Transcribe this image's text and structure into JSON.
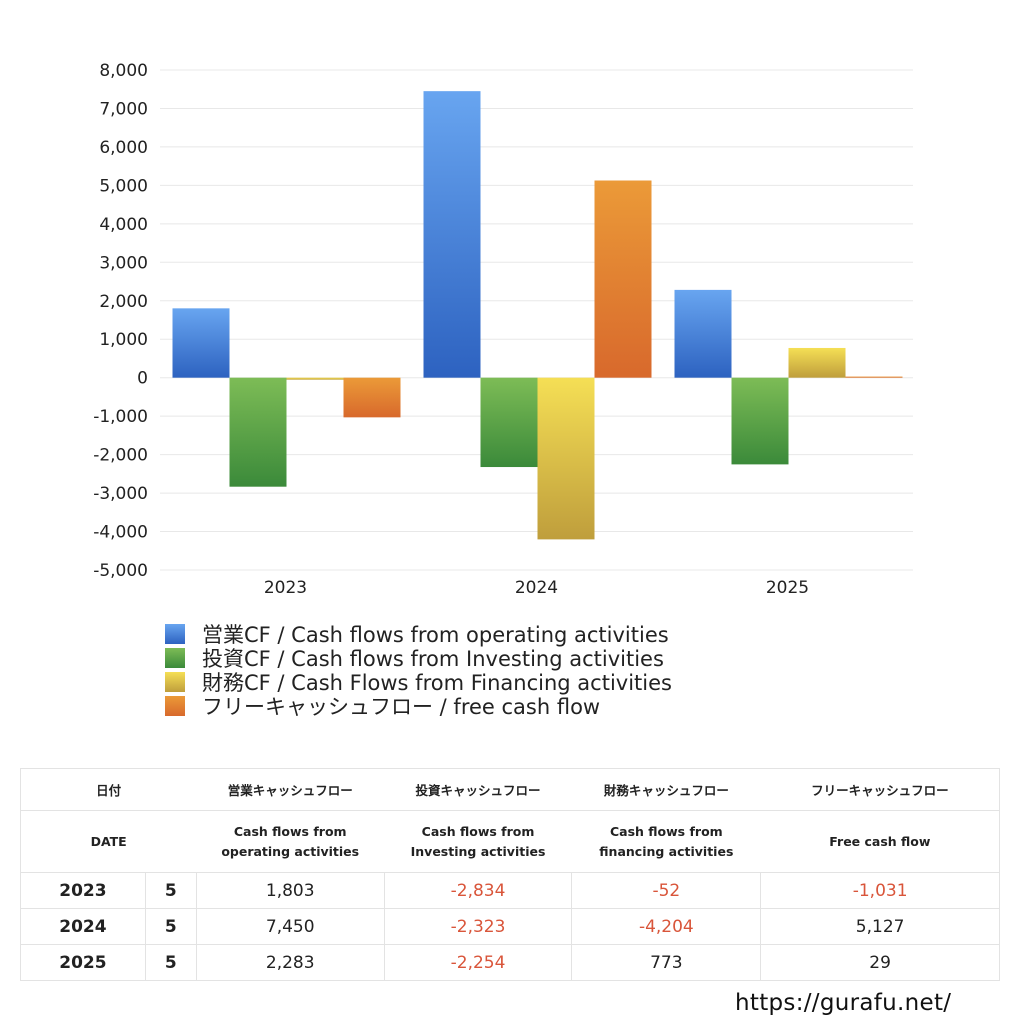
{
  "chart_data": {
    "type": "bar",
    "title": "",
    "xlabel": "",
    "ylabel": "",
    "ylim": [
      -5000,
      8000
    ],
    "yticks": [
      8000,
      7000,
      6000,
      5000,
      4000,
      3000,
      2000,
      1000,
      0,
      -1000,
      -2000,
      -3000,
      -4000,
      -5000
    ],
    "ytick_labels": [
      "8,000",
      "7,000",
      "6,000",
      "5,000",
      "4,000",
      "3,000",
      "2,000",
      "1,000",
      "0",
      "-1,000",
      "-2,000",
      "-3,000",
      "-4,000",
      "-5,000"
    ],
    "grid": true,
    "legend_position": "bottom",
    "categories": [
      "2023",
      "2024",
      "2025"
    ],
    "series": [
      {
        "name": "営業CF / Cash flows from operating activities",
        "values": [
          1803,
          7450,
          2283
        ],
        "color": "#3a78d6",
        "color_top": "#68a5f0",
        "color_bottom": "#2d62c0"
      },
      {
        "name": "投資CF / Cash flows from Investing activities",
        "values": [
          -2834,
          -2323,
          -2254
        ],
        "color": "#5aa34a",
        "color_top": "#7dbc56",
        "color_bottom": "#3b8a3a"
      },
      {
        "name": "財務CF / Cash Flows from Financing activities",
        "values": [
          -52,
          -4204,
          773
        ],
        "color": "#e2c74a",
        "color_top": "#f5df55",
        "color_bottom": "#bf9e3c"
      },
      {
        "name": "フリーキャッシュフロー / free cash flow",
        "values": [
          -1031,
          5127,
          29
        ],
        "color": "#e0802f",
        "color_top": "#eb9a38",
        "color_bottom": "#d8692c"
      }
    ]
  },
  "legend": [
    {
      "label": "営業CF / Cash flows from operating activities",
      "color_top": "#68a5f0",
      "color_bottom": "#2d62c0"
    },
    {
      "label": "投資CF / Cash flows from Investing activities",
      "color_top": "#7dbc56",
      "color_bottom": "#3b8a3a"
    },
    {
      "label": "財務CF / Cash Flows from Financing activities",
      "color_top": "#f5df55",
      "color_bottom": "#bf9e3c"
    },
    {
      "label": "フリーキャッシュフロー / free cash flow",
      "color_top": "#eb9a38",
      "color_bottom": "#d8692c"
    }
  ],
  "table": {
    "header_jp": {
      "date": "日付",
      "operating": "営業キャッシュフロー",
      "investing": "投資キャッシュフロー",
      "financing": "財務キャッシュフロー",
      "free": "フリーキャッシュフロー"
    },
    "header_en": {
      "date": "DATE",
      "operating_1": "Cash flows from",
      "operating_2": "operating activities",
      "investing_1": "Cash flows from",
      "investing_2": "Investing activities",
      "financing_1": "Cash flows from",
      "financing_2": "financing activities",
      "free": "Free cash flow"
    },
    "rows": [
      {
        "year": "2023",
        "month": "5",
        "operating": "1,803",
        "investing": "-2,834",
        "financing": "-52",
        "free": "-1,031"
      },
      {
        "year": "2024",
        "month": "5",
        "operating": "7,450",
        "investing": "-2,323",
        "financing": "-4,204",
        "free": "5,127"
      },
      {
        "year": "2025",
        "month": "5",
        "operating": "2,283",
        "investing": "-2,254",
        "financing": "773",
        "free": "29"
      }
    ],
    "negative_color": "#d9553a"
  },
  "footer": {
    "url": "https://gurafu.net/"
  }
}
